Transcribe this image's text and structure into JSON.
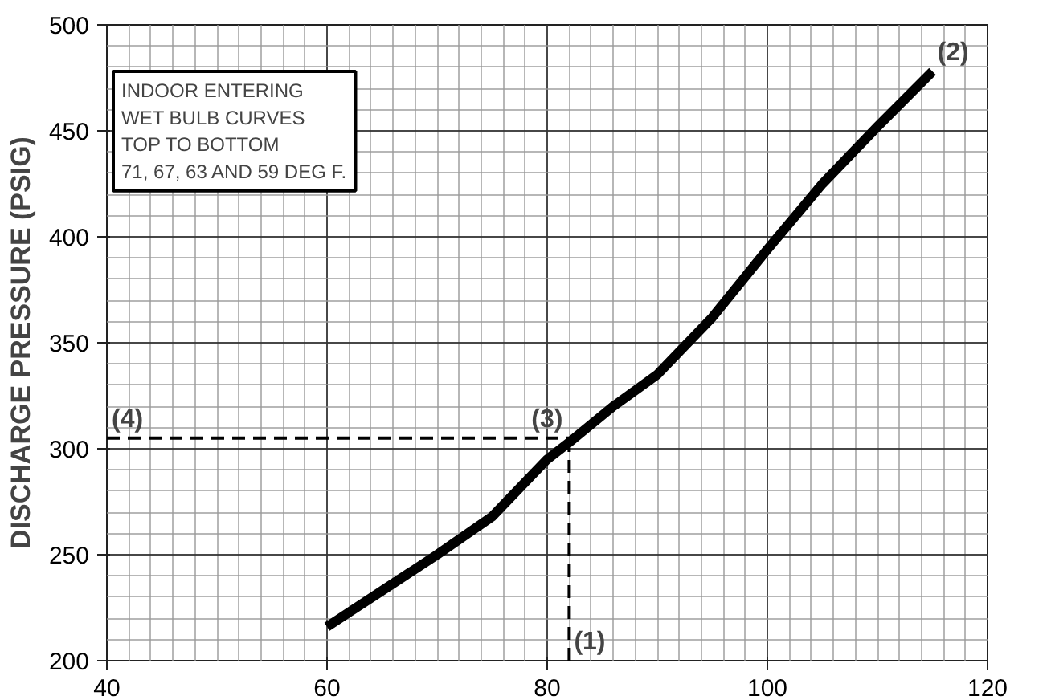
{
  "chart_data": {
    "type": "line",
    "ylabel": "DISCHARGE PRESSURE (PSIG)",
    "xlim": [
      40,
      120
    ],
    "ylim": [
      200,
      500
    ],
    "xticks": [
      40,
      60,
      80,
      100,
      120
    ],
    "yticks": [
      200,
      250,
      300,
      350,
      400,
      450,
      500
    ],
    "grid": true,
    "series": [
      {
        "color": "#000000",
        "x": [
          60,
          65,
          70,
          75,
          80,
          82,
          86,
          90,
          95,
          100,
          105,
          110,
          115
        ],
        "values": [
          216,
          233,
          250,
          268,
          295,
          303,
          320,
          335,
          362,
          394,
          425,
          452,
          478
        ]
      },
      {
        "type": "line",
        "line_style": "dashed",
        "color": "#000000",
        "x": [
          82,
          82
        ],
        "values": [
          200,
          305
        ]
      },
      {
        "type": "line",
        "line_style": "dashed",
        "color": "#000000",
        "x": [
          40,
          82
        ],
        "values": [
          305,
          305
        ]
      }
    ],
    "annotations": [
      "INDOOR ENTERING\nWET BULB CURVES\nTOP TO BOTTOM\n71, 67, 63 AND 59 DEG F.",
      {
        "text": "(1)",
        "x": 82,
        "y": 200
      },
      {
        "text": "(2)",
        "x": 115,
        "y": 478
      },
      {
        "text": "(3)",
        "x": 82,
        "y": 305
      },
      {
        "text": "(4)",
        "x": 40,
        "y": 305
      }
    ]
  }
}
